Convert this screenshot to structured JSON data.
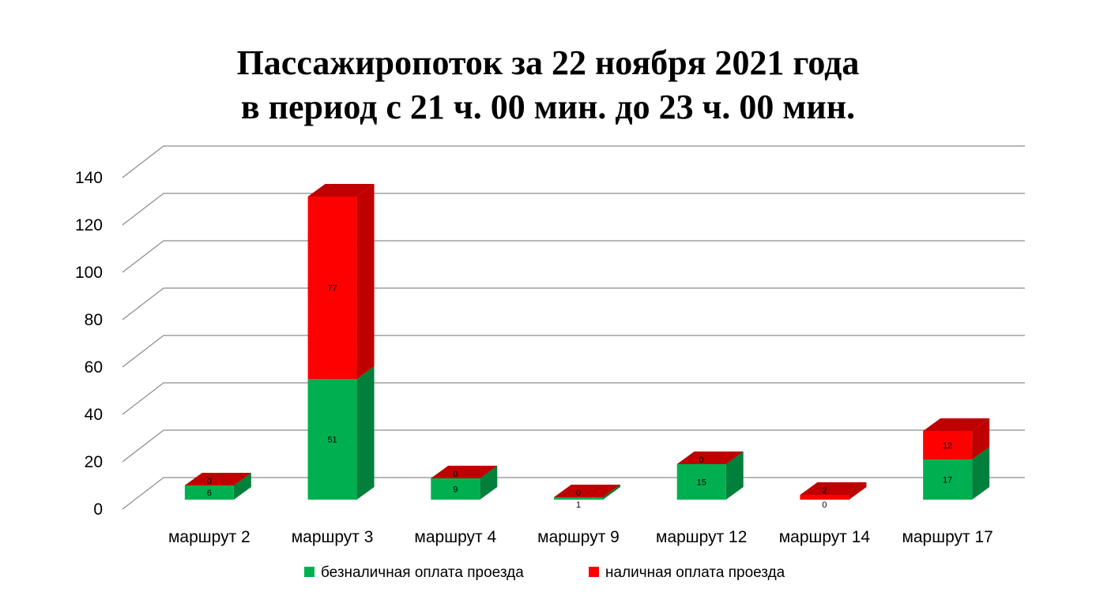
{
  "chart_data": {
    "type": "bar",
    "stacked": true,
    "three_d": true,
    "title": [
      "Пассажиропоток за 22 ноября 2021 года",
      "в период с 21 ч. 00 мин. до 23 ч. 00 мин."
    ],
    "categories": [
      "маршрут 2",
      "маршрут 3",
      "маршрут 4",
      "маршрут 9",
      "маршрут 12",
      "маршрут 14",
      "маршрут 17"
    ],
    "series": [
      {
        "name": "безналичная оплата проезда",
        "values": [
          6,
          51,
          9,
          1,
          15,
          0,
          17
        ],
        "color": "#00b050",
        "side_color": "#00803a",
        "top_color": "#00a048"
      },
      {
        "name": "наличная оплата проезда",
        "values": [
          0,
          77,
          0,
          0,
          0,
          2,
          12
        ],
        "color": "#ff0000",
        "side_color": "#c00000",
        "top_color": "#c00000"
      }
    ],
    "yticks": [
      0,
      20,
      40,
      60,
      80,
      100,
      120,
      140
    ],
    "ylim": [
      0,
      140
    ],
    "grid": true,
    "legend": "bottom"
  }
}
